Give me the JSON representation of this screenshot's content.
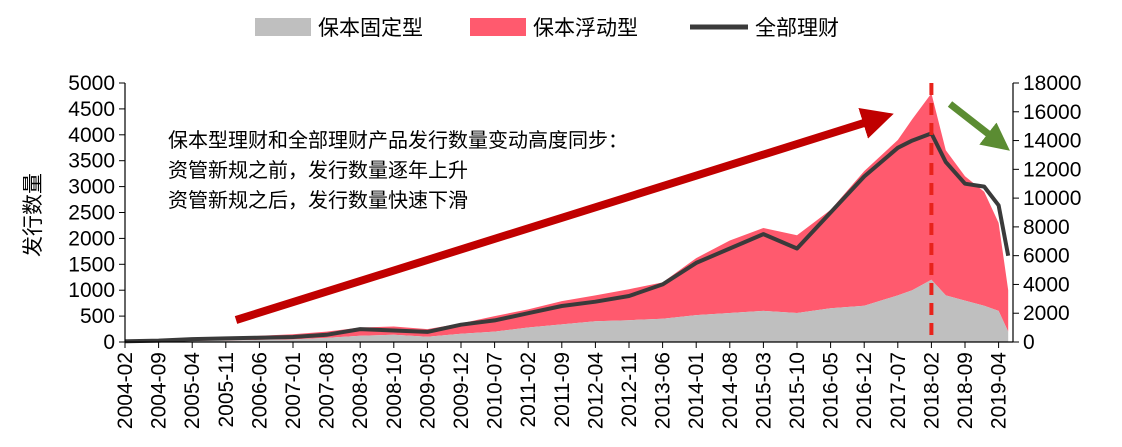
{
  "chart_data": {
    "type": "area",
    "ylabel": "发行数量",
    "legend": [
      "保本固定型",
      "保本浮动型",
      "全部理财"
    ],
    "legend_position": "top",
    "colors": {
      "fixed": "#BFBFBF",
      "floating": "#FF5A6E",
      "total": "#3A3A3A",
      "big_arrow": "#C00000",
      "small_arrow": "#5B8C32",
      "divider": "#E8231B"
    },
    "left_axis": {
      "min": 0,
      "max": 5000,
      "step": 500,
      "ticks": [
        "0",
        "500",
        "1000",
        "1500",
        "2000",
        "2500",
        "3000",
        "3500",
        "4000",
        "4500",
        "5000"
      ]
    },
    "right_axis": {
      "min": 0,
      "max": 18000,
      "step": 2000,
      "ticks": [
        "0",
        "2000",
        "4000",
        "6000",
        "8000",
        "10000",
        "12000",
        "14000",
        "16000",
        "18000"
      ]
    },
    "x_tick_labels": [
      "2004-02",
      "2004-09",
      "2005-04",
      "2005-11",
      "2006-06",
      "2007-01",
      "2007-08",
      "2008-03",
      "2008-10",
      "2009-05",
      "2009-12",
      "2010-07",
      "2011-02",
      "2011-09",
      "2012-04",
      "2012-11",
      "2013-06",
      "2014-01",
      "2014-08",
      "2015-03",
      "2015-10",
      "2016-05",
      "2016-12",
      "2017-07",
      "2018-02",
      "2018-09",
      "2019-04"
    ],
    "annotation": {
      "lines": [
        "保本型理财和全部理财产品发行数量变动高度同步：",
        "资管新规之前，发行数量逐年上升",
        "资管新规之后，发行数量快速下滑"
      ]
    },
    "event_line_x": "2018-02",
    "series": [
      {
        "name": "保本固定型",
        "axis": "left",
        "stacked": true,
        "points": [
          [
            "2004-02",
            5
          ],
          [
            "2004-09",
            10
          ],
          [
            "2005-04",
            20
          ],
          [
            "2005-11",
            30
          ],
          [
            "2006-06",
            40
          ],
          [
            "2007-01",
            50
          ],
          [
            "2007-08",
            80
          ],
          [
            "2008-03",
            120
          ],
          [
            "2008-10",
            140
          ],
          [
            "2009-05",
            100
          ],
          [
            "2009-12",
            160
          ],
          [
            "2010-07",
            200
          ],
          [
            "2011-02",
            280
          ],
          [
            "2011-09",
            340
          ],
          [
            "2012-04",
            400
          ],
          [
            "2012-11",
            420
          ],
          [
            "2013-06",
            450
          ],
          [
            "2014-01",
            520
          ],
          [
            "2014-08",
            560
          ],
          [
            "2015-03",
            600
          ],
          [
            "2015-10",
            560
          ],
          [
            "2016-05",
            650
          ],
          [
            "2016-12",
            700
          ],
          [
            "2017-07",
            900
          ],
          [
            "2017-10",
            1000
          ],
          [
            "2018-02",
            1200
          ],
          [
            "2018-05",
            900
          ],
          [
            "2018-09",
            800
          ],
          [
            "2019-01",
            700
          ],
          [
            "2019-04",
            600
          ],
          [
            "2019-06",
            200
          ]
        ]
      },
      {
        "name": "保本浮动型",
        "axis": "left",
        "stacked": true,
        "points": [
          [
            "2004-02",
            0
          ],
          [
            "2004-09",
            5
          ],
          [
            "2005-04",
            30
          ],
          [
            "2005-11",
            40
          ],
          [
            "2006-06",
            80
          ],
          [
            "2007-01",
            100
          ],
          [
            "2007-08",
            120
          ],
          [
            "2008-03",
            160
          ],
          [
            "2008-10",
            160
          ],
          [
            "2009-05",
            150
          ],
          [
            "2009-12",
            200
          ],
          [
            "2010-07",
            300
          ],
          [
            "2011-02",
            350
          ],
          [
            "2011-09",
            450
          ],
          [
            "2012-04",
            500
          ],
          [
            "2012-11",
            600
          ],
          [
            "2013-06",
            700
          ],
          [
            "2014-01",
            1100
          ],
          [
            "2014-08",
            1400
          ],
          [
            "2015-03",
            1600
          ],
          [
            "2015-10",
            1500
          ],
          [
            "2016-05",
            1900
          ],
          [
            "2016-12",
            2600
          ],
          [
            "2017-07",
            3000
          ],
          [
            "2017-10",
            3300
          ],
          [
            "2018-02",
            3600
          ],
          [
            "2018-05",
            2800
          ],
          [
            "2018-09",
            2400
          ],
          [
            "2019-01",
            2200
          ],
          [
            "2019-04",
            1700
          ],
          [
            "2019-06",
            800
          ]
        ]
      },
      {
        "name": "全部理财",
        "axis": "right",
        "points": [
          [
            "2004-02",
            50
          ],
          [
            "2004-09",
            100
          ],
          [
            "2005-04",
            200
          ],
          [
            "2005-11",
            250
          ],
          [
            "2006-06",
            300
          ],
          [
            "2007-01",
            350
          ],
          [
            "2007-08",
            500
          ],
          [
            "2008-03",
            900
          ],
          [
            "2008-10",
            800
          ],
          [
            "2009-05",
            700
          ],
          [
            "2009-12",
            1200
          ],
          [
            "2010-07",
            1500
          ],
          [
            "2011-02",
            2000
          ],
          [
            "2011-09",
            2500
          ],
          [
            "2012-04",
            2800
          ],
          [
            "2012-11",
            3200
          ],
          [
            "2013-06",
            4000
          ],
          [
            "2014-01",
            5500
          ],
          [
            "2014-08",
            6500
          ],
          [
            "2015-03",
            7500
          ],
          [
            "2015-10",
            6500
          ],
          [
            "2016-05",
            9000
          ],
          [
            "2016-12",
            11500
          ],
          [
            "2017-07",
            13500
          ],
          [
            "2017-10",
            14000
          ],
          [
            "2018-02",
            14500
          ],
          [
            "2018-05",
            12500
          ],
          [
            "2018-09",
            11000
          ],
          [
            "2019-01",
            10800
          ],
          [
            "2019-04",
            9500
          ],
          [
            "2019-06",
            6000
          ]
        ]
      }
    ]
  }
}
